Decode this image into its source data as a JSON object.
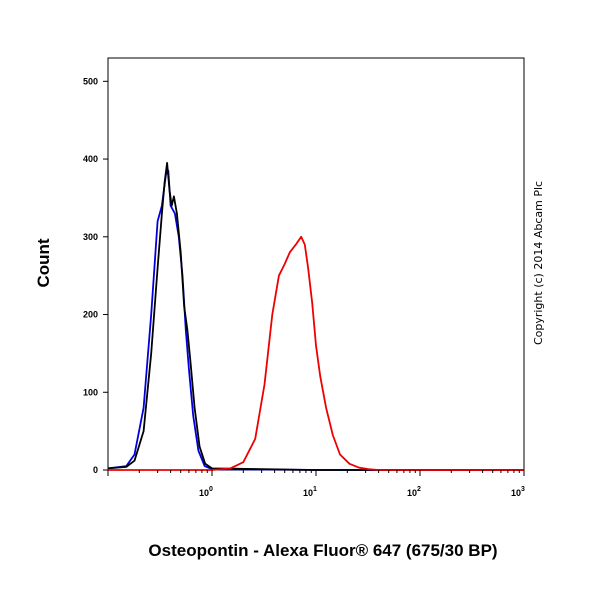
{
  "chart_data": {
    "type": "line",
    "xlabel": "Osteopontin - Alexa Fluor® 647 (675/30 BP)",
    "ylabel": "Count",
    "annotation": "Copyright (c) 2014 Abcam Plc",
    "x_scale": "log",
    "xlim": [
      0.1,
      1000
    ],
    "ylim": [
      0,
      530
    ],
    "x_ticks": [
      {
        "value": 1,
        "base": "10",
        "exp": "0"
      },
      {
        "value": 10,
        "base": "10",
        "exp": "1"
      },
      {
        "value": 100,
        "base": "10",
        "exp": "2"
      },
      {
        "value": 1000,
        "base": "10",
        "exp": "3"
      }
    ],
    "y_ticks": [
      0,
      100,
      200,
      300,
      400,
      500
    ],
    "grid": false,
    "series": [
      {
        "color": "#0000dd",
        "x": [
          0.1,
          0.15,
          0.18,
          0.22,
          0.26,
          0.3,
          0.33,
          0.36,
          0.38,
          0.4,
          0.44,
          0.48,
          0.52,
          0.56,
          0.6,
          0.66,
          0.74,
          0.85,
          1.0,
          10,
          100,
          1000
        ],
        "values": [
          2,
          5,
          20,
          80,
          200,
          320,
          340,
          380,
          385,
          340,
          330,
          300,
          250,
          180,
          130,
          70,
          25,
          5,
          1,
          0,
          0,
          0
        ]
      },
      {
        "color": "#000000",
        "x": [
          0.1,
          0.15,
          0.18,
          0.22,
          0.26,
          0.3,
          0.33,
          0.35,
          0.37,
          0.39,
          0.41,
          0.43,
          0.46,
          0.5,
          0.54,
          0.58,
          0.62,
          0.68,
          0.76,
          0.86,
          1.0,
          10,
          100,
          1000
        ],
        "values": [
          2,
          4,
          12,
          50,
          150,
          260,
          330,
          370,
          395,
          360,
          340,
          352,
          330,
          280,
          210,
          180,
          140,
          80,
          30,
          8,
          2,
          0,
          0,
          0
        ]
      },
      {
        "color": "#ee0000",
        "x": [
          0.1,
          1.0,
          1.5,
          2,
          2.6,
          3.2,
          3.8,
          4.4,
          5,
          5.6,
          6.4,
          7.2,
          7.8,
          8.4,
          9.2,
          10,
          11,
          12.5,
          14.5,
          17,
          21,
          26,
          32,
          40,
          100,
          1000
        ],
        "values": [
          0,
          0,
          2,
          10,
          40,
          110,
          200,
          250,
          265,
          280,
          290,
          300,
          290,
          260,
          215,
          160,
          120,
          80,
          45,
          20,
          8,
          3,
          1,
          0,
          0,
          0
        ]
      }
    ]
  }
}
